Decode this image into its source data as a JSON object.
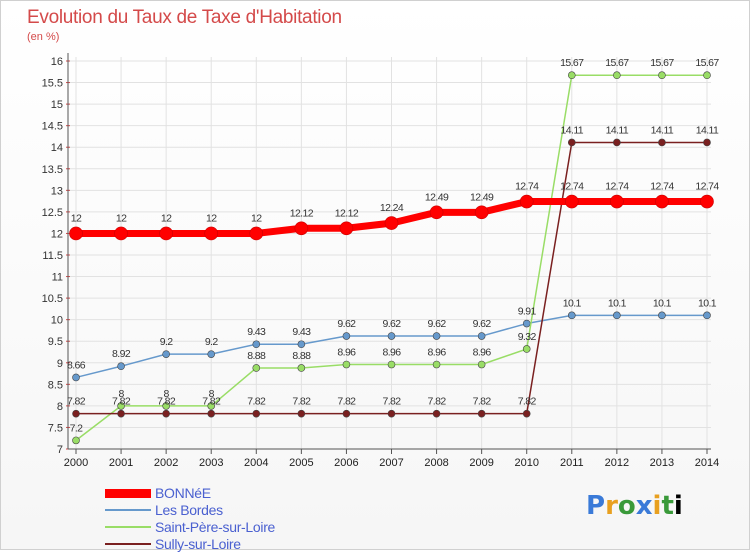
{
  "chart_data": {
    "type": "line",
    "title": "Evolution du Taux de Taxe d'Habitation",
    "subtitle": "(en %)",
    "x": [
      "2000",
      "2001",
      "2002",
      "2003",
      "2004",
      "2005",
      "2006",
      "2007",
      "2008",
      "2009",
      "2010",
      "2011",
      "2012",
      "2013",
      "2014"
    ],
    "ylim": [
      7,
      16
    ],
    "yticks": [
      "7",
      "7.5",
      "8",
      "8.5",
      "9",
      "9.5",
      "10",
      "10.5",
      "11",
      "11.5",
      "12",
      "12.5",
      "13",
      "13.5",
      "14",
      "14.5",
      "15",
      "15.5",
      "16"
    ],
    "grid": true,
    "legend_position": "bottom-left",
    "series": [
      {
        "name": "BONNéE",
        "color": "#ff0000",
        "values": [
          12,
          12,
          12,
          12,
          12,
          12.12,
          12.12,
          12.24,
          12.49,
          12.49,
          12.74,
          12.74,
          12.74,
          12.74,
          12.74
        ],
        "labels": [
          "12",
          "12",
          "12",
          "12",
          "12",
          "12.12",
          "12.12",
          "12.24",
          "12.49",
          "12.49",
          "12.74",
          "12.74",
          "12.74",
          "12.74",
          "12.74"
        ]
      },
      {
        "name": "Les Bordes",
        "color": "#6699cc",
        "values": [
          8.66,
          8.92,
          9.2,
          9.2,
          9.43,
          9.43,
          9.62,
          9.62,
          9.62,
          9.62,
          9.91,
          10.1,
          10.1,
          10.1,
          10.1
        ],
        "labels": [
          "8.66",
          "8.92",
          "9.2",
          "9.2",
          "9.43",
          "9.43",
          "9.62",
          "9.62",
          "9.62",
          "9.62",
          "9.91",
          "10.1",
          "10.1",
          "10.1",
          "10.1"
        ]
      },
      {
        "name": "Saint-Père-sur-Loire",
        "color": "#99dd66",
        "values": [
          7.2,
          8,
          8,
          8,
          8.88,
          8.88,
          8.96,
          8.96,
          8.96,
          8.96,
          9.32,
          15.67,
          15.67,
          15.67,
          15.67
        ],
        "labels": [
          "7.2",
          "8",
          "8",
          "8",
          "8.88",
          "8.88",
          "8.96",
          "8.96",
          "8.96",
          "8.96",
          "9.32",
          "15.67",
          "15.67",
          "15.67",
          "15.67"
        ]
      },
      {
        "name": "Sully-sur-Loire",
        "color": "#7a2020",
        "values": [
          7.82,
          7.82,
          7.82,
          7.82,
          7.82,
          7.82,
          7.82,
          7.82,
          7.82,
          7.82,
          7.82,
          14.11,
          14.11,
          14.11,
          14.11
        ],
        "labels": [
          "7.82",
          "7.82",
          "7.82",
          "7.82",
          "7.82",
          "7.82",
          "7.82",
          "7.82",
          "7.82",
          "7.82",
          "7.82",
          "14.11",
          "14.11",
          "14.11",
          "14.11"
        ]
      }
    ]
  },
  "logo": {
    "letters": [
      "P",
      "r",
      "o",
      "x",
      "i",
      "t",
      "i"
    ]
  }
}
